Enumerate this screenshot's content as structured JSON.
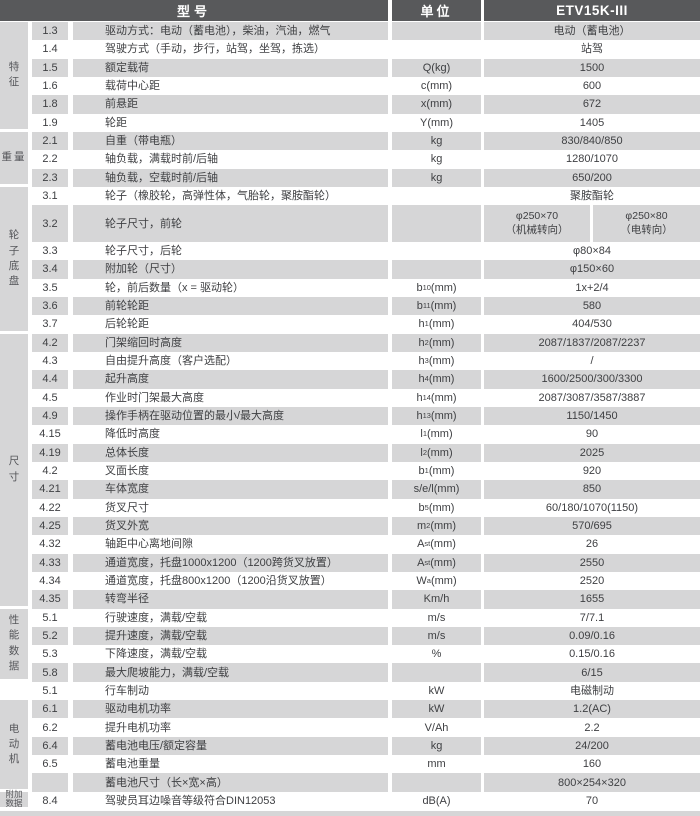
{
  "header": {
    "model_label": "型号",
    "unit_label": "单位",
    "product": "ETV15K-III"
  },
  "colors": {
    "header_bg": "#58595b",
    "stripe": "#d6d6d7",
    "text": "#3f4043"
  },
  "groups": [
    {
      "label": "特征",
      "label_lines": [
        "特",
        "征"
      ],
      "rows": [
        {
          "num": "1.3",
          "desc": "驱动方式：电动（蓄电池），柴油，汽油，燃气",
          "unit": "",
          "value": "电动（蓄电池）"
        },
        {
          "num": "1.4",
          "desc": "驾驶方式（手动，步行，站驾，坐驾，拣选）",
          "unit": "",
          "value": "站驾"
        },
        {
          "num": "1.5",
          "desc": "额定载荷",
          "unit": "Q(kg)",
          "value": "1500"
        },
        {
          "num": "1.6",
          "desc": "载荷中心距",
          "unit": "c(mm)",
          "value": "600"
        },
        {
          "num": "1.8",
          "desc": "前悬距",
          "unit": "x(mm)",
          "value": "672"
        },
        {
          "num": "1.9",
          "desc": "轮距",
          "unit": "Y(mm)",
          "value": "1405"
        }
      ]
    },
    {
      "label": "重量",
      "label_lines": [
        "重量"
      ],
      "rows": [
        {
          "num": "2.1",
          "desc": "自重（带电瓶）",
          "unit": "kg",
          "value": "830/840/850"
        },
        {
          "num": "2.2",
          "desc": "轴负载，满载时前/后轴",
          "unit": "kg",
          "value": "1280/1070"
        },
        {
          "num": "2.3",
          "desc": "轴负载，空载时前/后轴",
          "unit": "kg",
          "value": "650/200"
        }
      ]
    },
    {
      "label": "轮子底盘",
      "label_lines": [
        "轮",
        "子",
        "底",
        "盘"
      ],
      "rows": [
        {
          "num": "3.1",
          "desc": "轮子（橡胶轮，高弹性体，气胎轮，聚胺酯轮）",
          "unit": "",
          "value": "聚胺酯轮"
        },
        {
          "num": "3.2",
          "desc": "轮子尺寸，前轮",
          "unit": "",
          "value_split": [
            {
              "size": "φ250×70",
              "note": "（机械转向）"
            },
            {
              "size": "φ250×80",
              "note": "（电转向）"
            }
          ]
        },
        {
          "num": "3.3",
          "desc": "轮子尺寸，后轮",
          "unit": "",
          "value": "φ80×84"
        },
        {
          "num": "3.4",
          "desc": "附加轮（尺寸）",
          "unit": "",
          "value": "φ150×60"
        },
        {
          "num": "3.5",
          "desc": "轮，前后数量（x = 驱动轮）",
          "unit": "b_{10}(mm)",
          "value": "1x+2/4"
        },
        {
          "num": "3.6",
          "desc": "前轮轮距",
          "unit": "b_{11}(mm)",
          "value": "580"
        },
        {
          "num": "3.7",
          "desc": "后轮轮距",
          "unit": "h_{1}(mm)",
          "value": "404/530"
        }
      ]
    },
    {
      "label": "尺寸",
      "label_lines": [
        "尺",
        "寸"
      ],
      "rows": [
        {
          "num": "4.2",
          "desc": "门架缩回时高度",
          "unit": "h_{2}(mm)",
          "value": "2087/1837/2087/2237"
        },
        {
          "num": "4.3",
          "desc": "自由提升高度（客户选配）",
          "unit": "h_{3}(mm)",
          "value": "/"
        },
        {
          "num": "4.4",
          "desc": "起升高度",
          "unit": "h_{4}(mm)",
          "value": "1600/2500/300/3300"
        },
        {
          "num": "4.5",
          "desc": "作业时门架最大高度",
          "unit": "h_{14}(mm)",
          "value": "2087/3087/3587/3887"
        },
        {
          "num": "4.9",
          "desc": "操作手柄在驱动位置的最小/最大高度",
          "unit": "h_{13}(mm)",
          "value": "1150/1450"
        },
        {
          "num": "4.15",
          "desc": "降低时高度",
          "unit": "l_{1}(mm)",
          "value": "90"
        },
        {
          "num": "4.19",
          "desc": "总体长度",
          "unit": "l_{2}(mm)",
          "value": "2025"
        },
        {
          "num": "4.2",
          "desc": "叉面长度",
          "unit": "b_{1}(mm)",
          "value": "920"
        },
        {
          "num": "4.21",
          "desc": "车体宽度",
          "unit": "s/e/l(mm)",
          "value": "850"
        },
        {
          "num": "4.22",
          "desc": "货叉尺寸",
          "unit": "b_{5}(mm)",
          "value": "60/180/1070(1150)"
        },
        {
          "num": "4.25",
          "desc": "货叉外宽",
          "unit": "m_{2}(mm)",
          "value": "570/695"
        },
        {
          "num": "4.32",
          "desc": "轴距中心离地间隙",
          "unit": "A_{st}(mm)",
          "value": "26"
        },
        {
          "num": "4.33",
          "desc": "通道宽度，托盘1000x1200（1200跨货叉放置）",
          "unit": "A_{st}(mm)",
          "value": "2550"
        },
        {
          "num": "4.34",
          "desc": "通道宽度，托盘800x1200（1200沿货叉放置）",
          "unit": "W_{a}(mm)",
          "value": "2520"
        },
        {
          "num": "4.35",
          "desc": "转弯半径",
          "unit": "Km/h",
          "value": "1655"
        }
      ]
    },
    {
      "label": "性能数据",
      "label_lines": [
        "性",
        "能",
        "数",
        "据"
      ],
      "rows": [
        {
          "num": "5.1",
          "desc": "行驶速度，满载/空载",
          "unit": "m/s",
          "value": "7/7.1"
        },
        {
          "num": "5.2",
          "desc": "提升速度，满载/空载",
          "unit": "m/s",
          "value": "0.09/0.16"
        },
        {
          "num": "5.3",
          "desc": "下降速度，满载/空载",
          "unit": "%",
          "value": "0.15/0.16"
        },
        {
          "num": "5.8",
          "desc": "最大爬坡能力，满载/空载",
          "unit": "",
          "value": "6/15"
        }
      ]
    },
    {
      "label": "",
      "label_lines": [],
      "rows": [
        {
          "num": "5.1",
          "desc": "行车制动",
          "unit": "kW",
          "value": "电磁制动"
        }
      ]
    },
    {
      "label": "电动机",
      "label_lines": [
        "电",
        "动",
        "机"
      ],
      "rows": [
        {
          "num": "6.1",
          "desc": "驱动电机功率",
          "unit": "kW",
          "value": "1.2(AC)"
        },
        {
          "num": "6.2",
          "desc": "提升电机功率",
          "unit": "V/Ah",
          "value": "2.2"
        },
        {
          "num": "6.4",
          "desc": "蓄电池电压/额定容量",
          "unit": "kg",
          "value": "24/200"
        },
        {
          "num": "6.5",
          "desc": "蓄电池重量",
          "unit": "mm",
          "value": "160"
        },
        {
          "num": "",
          "desc": "蓄电池尺寸（长×宽×高）",
          "unit": "",
          "value": "800×254×320"
        }
      ]
    },
    {
      "label": "附加数据",
      "label_lines": [
        "附加",
        "数据"
      ],
      "rows": [
        {
          "num": "8.4",
          "desc": "驾驶员耳边噪音等级符合DIN12053",
          "unit": "dB(A)",
          "value": "70"
        }
      ]
    }
  ]
}
